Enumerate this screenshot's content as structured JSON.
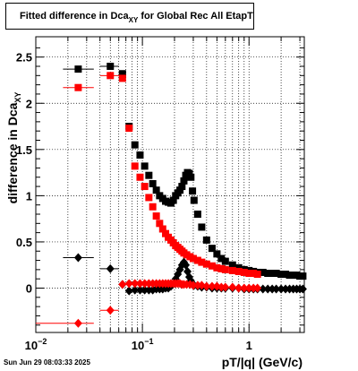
{
  "title": {
    "prefix": "Fitted difference in Dca",
    "sub": "XY",
    "suffix": " for Global Rec All EtapT"
  },
  "datestamp": "Sun Jun 29 08:03:33 2025",
  "chart_data": {
    "type": "scatter",
    "title": "Fitted difference in Dca_XY for Global Rec All EtapT",
    "xlabel": "pT/|q| (GeV/c)",
    "ylabel": "difference in Dca",
    "ylabel_sub": "XY",
    "xscale": "log",
    "xlim": [
      0.01,
      3.3
    ],
    "ylim": [
      -0.48,
      2.72
    ],
    "grid": true,
    "x_ticks": [
      {
        "v": 0.01,
        "label": "10",
        "sup": "−2"
      },
      {
        "v": 0.1,
        "label": "10",
        "sup": "−1"
      },
      {
        "v": 1,
        "label": "1",
        "sup": ""
      }
    ],
    "y_ticks": [
      {
        "v": 0,
        "label": "0"
      },
      {
        "v": 0.5,
        "label": "0.5"
      },
      {
        "v": 1,
        "label": "1"
      },
      {
        "v": 1.5,
        "label": "1.5"
      },
      {
        "v": 2,
        "label": "2"
      },
      {
        "v": 2.5,
        "label": "2.5"
      }
    ],
    "series": [
      {
        "marker": "square",
        "color": "#000000",
        "x": [
          0.025,
          0.05,
          0.065,
          0.075,
          0.085,
          0.095,
          0.105,
          0.115,
          0.125,
          0.135,
          0.145,
          0.155,
          0.165,
          0.175,
          0.185,
          0.195,
          0.205,
          0.215,
          0.225,
          0.235,
          0.245,
          0.255,
          0.265,
          0.275,
          0.285,
          0.295,
          0.305,
          0.33,
          0.36,
          0.4,
          0.45,
          0.5,
          0.55,
          0.6,
          0.7,
          0.8,
          0.9,
          1.0,
          1.1,
          1.2,
          1.35,
          1.5,
          1.65,
          1.8,
          2.0,
          2.2,
          2.4,
          2.6,
          2.8,
          3.0,
          3.2
        ],
        "y": [
          2.37,
          2.4,
          2.32,
          1.75,
          1.55,
          1.44,
          1.32,
          1.22,
          1.13,
          1.06,
          1.0,
          0.97,
          0.94,
          0.93,
          0.92,
          0.95,
          1.0,
          1.03,
          1.06,
          1.1,
          1.16,
          1.22,
          1.25,
          1.24,
          1.2,
          1.05,
          0.95,
          0.8,
          0.66,
          0.52,
          0.43,
          0.37,
          0.32,
          0.29,
          0.25,
          0.22,
          0.2,
          0.19,
          0.18,
          0.17,
          0.17,
          0.16,
          0.16,
          0.16,
          0.15,
          0.15,
          0.14,
          0.14,
          0.14,
          0.13,
          0.13
        ],
        "xerr": {
          "0": [
            0.018,
            0.035
          ],
          "1": [
            0.04,
            0.06
          ],
          "2": [
            0.06,
            0.07
          ]
        }
      },
      {
        "marker": "square",
        "color": "#ff0000",
        "x": [
          0.025,
          0.05,
          0.065,
          0.075,
          0.085,
          0.095,
          0.105,
          0.115,
          0.125,
          0.135,
          0.145,
          0.155,
          0.165,
          0.175,
          0.185,
          0.195,
          0.205,
          0.215,
          0.225,
          0.235,
          0.245,
          0.26,
          0.28,
          0.3,
          0.33,
          0.36,
          0.4,
          0.45,
          0.5,
          0.55,
          0.6,
          0.7,
          0.8,
          0.9,
          1.0,
          1.1,
          1.2
        ],
        "y": [
          2.17,
          2.3,
          2.27,
          1.73,
          1.32,
          1.2,
          1.1,
          0.98,
          0.88,
          0.78,
          0.7,
          0.64,
          0.59,
          0.55,
          0.52,
          0.49,
          0.46,
          0.44,
          0.42,
          0.4,
          0.38,
          0.36,
          0.34,
          0.32,
          0.3,
          0.28,
          0.26,
          0.24,
          0.22,
          0.21,
          0.2,
          0.19,
          0.18,
          0.17,
          0.16,
          0.16,
          0.15
        ],
        "xerr": {
          "0": [
            0.018,
            0.035
          ],
          "1": [
            0.04,
            0.06
          ],
          "2": [
            0.06,
            0.07
          ]
        }
      },
      {
        "marker": "diamond",
        "color": "#000000",
        "x": [
          0.025,
          0.05,
          0.065,
          0.075,
          0.085,
          0.095,
          0.105,
          0.115,
          0.125,
          0.135,
          0.145,
          0.155,
          0.165,
          0.175,
          0.185,
          0.195,
          0.205,
          0.215,
          0.225,
          0.235,
          0.245,
          0.255,
          0.265,
          0.275,
          0.285,
          0.295,
          0.305,
          0.33,
          0.36,
          0.4,
          0.45,
          0.5,
          0.55,
          0.6,
          0.7,
          0.8,
          0.9,
          1.0,
          1.1,
          1.2,
          1.35,
          1.5,
          1.65,
          1.8,
          2.0,
          2.2,
          2.4,
          2.6,
          2.8,
          3.0,
          3.2
        ],
        "y": [
          0.33,
          0.21,
          0.04,
          -0.03,
          -0.02,
          -0.02,
          -0.02,
          -0.02,
          -0.02,
          -0.01,
          -0.01,
          -0.01,
          0.0,
          0.0,
          0.02,
          0.05,
          0.1,
          0.15,
          0.2,
          0.25,
          0.28,
          0.25,
          0.18,
          0.12,
          0.08,
          0.05,
          0.03,
          0.02,
          0.01,
          0.01,
          0.0,
          0.0,
          0.0,
          0.0,
          0.0,
          0.0,
          -0.01,
          -0.01,
          -0.01,
          -0.01,
          -0.01,
          -0.01,
          -0.01,
          -0.01,
          -0.01,
          -0.01,
          -0.01,
          -0.01,
          -0.01,
          -0.01,
          -0.01
        ],
        "xerr": {
          "0": [
            0.018,
            0.035
          ],
          "1": [
            0.04,
            0.06
          ],
          "2": [
            0.06,
            0.07
          ]
        }
      },
      {
        "marker": "diamond",
        "color": "#ff0000",
        "x": [
          0.025,
          0.05,
          0.065,
          0.075,
          0.085,
          0.095,
          0.105,
          0.115,
          0.125,
          0.135,
          0.145,
          0.155,
          0.165,
          0.175,
          0.185,
          0.195,
          0.205,
          0.215,
          0.225,
          0.235,
          0.245,
          0.26,
          0.28,
          0.3,
          0.33,
          0.36,
          0.4,
          0.45,
          0.5,
          0.55,
          0.6,
          0.7,
          0.8,
          0.9,
          1.0,
          1.1,
          1.2
        ],
        "y": [
          -0.38,
          -0.24,
          0.04,
          0.05,
          0.05,
          0.05,
          0.05,
          0.05,
          0.05,
          0.05,
          0.05,
          0.05,
          0.05,
          0.05,
          0.05,
          0.05,
          0.05,
          0.05,
          0.05,
          0.04,
          0.04,
          0.04,
          0.04,
          0.03,
          0.03,
          0.03,
          0.02,
          0.02,
          0.02,
          0.01,
          0.01,
          0.01,
          0.0,
          0.0,
          0.0,
          0.0,
          0.0
        ],
        "xerr": {
          "0": [
            0.005,
            0.035
          ],
          "1": [
            0.04,
            0.06
          ],
          "2": [
            0.06,
            0.07
          ]
        }
      }
    ]
  }
}
